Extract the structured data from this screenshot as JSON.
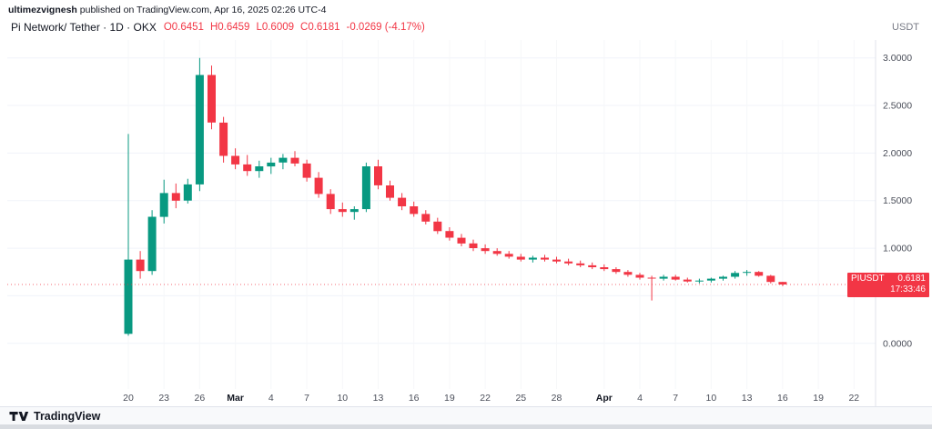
{
  "attribution": {
    "user": "ultimezvignesh",
    "rest": " published on TradingView.com, Apr 16, 2025 02:26 UTC-4"
  },
  "header": {
    "symbol_line": "Pi Network/ Tether · 1D · OKX",
    "ohlc": {
      "open": "O0.6451",
      "high": "H0.6459",
      "low": "L0.6009",
      "close": "C0.6181",
      "change": "-0.0269 (-4.17%)"
    }
  },
  "price_scale": {
    "currency": "USDT",
    "badge": {
      "symbol": "PIUSDT",
      "price": "0.6181",
      "countdown": "17:33:46"
    }
  },
  "footer": {
    "logo_text": "TradingView"
  },
  "colors": {
    "up": "#089981",
    "down": "#f23645",
    "text": "#131722",
    "muted": "#787b86",
    "axis_text": "#4a4e59",
    "grid": "#f0f3fa",
    "grid_v": "#f6f7f9",
    "axis_border": "#e0e3eb",
    "badge_bg": "#f23645"
  },
  "chart_data": {
    "type": "candlestick",
    "title": "Pi Network/ Tether",
    "symbol": "PIUSDT",
    "interval": "1D",
    "exchange": "OKX",
    "last_price": 0.6181,
    "last_ohlc": {
      "open": 0.6451,
      "high": 0.6459,
      "low": 0.6009,
      "close": 0.6181
    },
    "change_abs": -0.0269,
    "change_pct": -4.17,
    "ylim": [
      -0.48,
      3.15
    ],
    "grid_levels": [
      3.0,
      2.5,
      2.0,
      1.5,
      1.0,
      0.5,
      0.0
    ],
    "y_ticks": [
      {
        "label": "3.0000",
        "value": 3.0
      },
      {
        "label": "2.5000",
        "value": 2.5
      },
      {
        "label": "2.0000",
        "value": 2.0
      },
      {
        "label": "1.5000",
        "value": 1.5
      },
      {
        "label": "1.0000",
        "value": 1.0
      },
      {
        "label": "0.0000",
        "value": 0.0
      }
    ],
    "x_labels": [
      {
        "t": "20",
        "i": 0
      },
      {
        "t": "23",
        "i": 3
      },
      {
        "t": "26",
        "i": 6
      },
      {
        "t": "Mar",
        "i": 9,
        "bold": true
      },
      {
        "t": "4",
        "i": 12
      },
      {
        "t": "7",
        "i": 15
      },
      {
        "t": "10",
        "i": 18
      },
      {
        "t": "13",
        "i": 21
      },
      {
        "t": "16",
        "i": 24
      },
      {
        "t": "19",
        "i": 27
      },
      {
        "t": "22",
        "i": 30
      },
      {
        "t": "25",
        "i": 33
      },
      {
        "t": "28",
        "i": 36
      },
      {
        "t": "Apr",
        "i": 40,
        "bold": true
      },
      {
        "t": "4",
        "i": 43
      },
      {
        "t": "7",
        "i": 46
      },
      {
        "t": "10",
        "i": 49
      },
      {
        "t": "13",
        "i": 52
      },
      {
        "t": "16",
        "i": 55
      },
      {
        "t": "19",
        "i": 58
      },
      {
        "t": "22",
        "i": 61
      }
    ],
    "candles": [
      [
        "Feb 20",
        0.1,
        2.2,
        0.08,
        0.88
      ],
      [
        "Feb 21",
        0.88,
        0.97,
        0.68,
        0.76
      ],
      [
        "Feb 22",
        0.76,
        1.4,
        0.72,
        1.33
      ],
      [
        "Feb 23",
        1.33,
        1.72,
        1.26,
        1.58
      ],
      [
        "Feb 24",
        1.58,
        1.68,
        1.42,
        1.5
      ],
      [
        "Feb 25",
        1.5,
        1.73,
        1.47,
        1.67
      ],
      [
        "Feb 26",
        1.67,
        3.0,
        1.6,
        2.82
      ],
      [
        "Feb 27",
        2.82,
        2.92,
        2.25,
        2.32
      ],
      [
        "Feb 28",
        2.32,
        2.38,
        1.9,
        1.97
      ],
      [
        "Mar 1",
        1.97,
        2.05,
        1.83,
        1.88
      ],
      [
        "Mar 2",
        1.88,
        1.98,
        1.76,
        1.81
      ],
      [
        "Mar 3",
        1.81,
        1.92,
        1.74,
        1.86
      ],
      [
        "Mar 4",
        1.86,
        1.95,
        1.78,
        1.9
      ],
      [
        "Mar 5",
        1.9,
        1.99,
        1.83,
        1.95
      ],
      [
        "Mar 6",
        1.95,
        2.02,
        1.86,
        1.89
      ],
      [
        "Mar 7",
        1.89,
        1.93,
        1.7,
        1.74
      ],
      [
        "Mar 8",
        1.74,
        1.8,
        1.53,
        1.57
      ],
      [
        "Mar 9",
        1.57,
        1.62,
        1.36,
        1.41
      ],
      [
        "Mar 10",
        1.41,
        1.48,
        1.33,
        1.38
      ],
      [
        "Mar 11",
        1.38,
        1.44,
        1.3,
        1.41
      ],
      [
        "Mar 12",
        1.41,
        1.9,
        1.38,
        1.86
      ],
      [
        "Mar 13",
        1.86,
        1.93,
        1.62,
        1.66
      ],
      [
        "Mar 14",
        1.66,
        1.71,
        1.5,
        1.53
      ],
      [
        "Mar 15",
        1.53,
        1.58,
        1.4,
        1.44
      ],
      [
        "Mar 16",
        1.44,
        1.49,
        1.33,
        1.36
      ],
      [
        "Mar 17",
        1.36,
        1.4,
        1.25,
        1.28
      ],
      [
        "Mar 18",
        1.28,
        1.32,
        1.15,
        1.18
      ],
      [
        "Mar 19",
        1.18,
        1.22,
        1.08,
        1.11
      ],
      [
        "Mar 20",
        1.11,
        1.15,
        1.02,
        1.05
      ],
      [
        "Mar 21",
        1.05,
        1.09,
        0.97,
        1.0
      ],
      [
        "Mar 22",
        1.0,
        1.04,
        0.94,
        0.97
      ],
      [
        "Mar 23",
        0.97,
        1.0,
        0.92,
        0.94
      ],
      [
        "Mar 24",
        0.94,
        0.97,
        0.89,
        0.91
      ],
      [
        "Mar 25",
        0.91,
        0.94,
        0.86,
        0.88
      ],
      [
        "Mar 26",
        0.88,
        0.92,
        0.85,
        0.9
      ],
      [
        "Mar 27",
        0.9,
        0.93,
        0.86,
        0.88
      ],
      [
        "Mar 28",
        0.88,
        0.91,
        0.84,
        0.86
      ],
      [
        "Mar 29",
        0.86,
        0.89,
        0.82,
        0.84
      ],
      [
        "Mar 30",
        0.84,
        0.87,
        0.8,
        0.82
      ],
      [
        "Mar 31",
        0.82,
        0.85,
        0.78,
        0.8
      ],
      [
        "Apr 1",
        0.8,
        0.83,
        0.76,
        0.78
      ],
      [
        "Apr 2",
        0.78,
        0.8,
        0.73,
        0.75
      ],
      [
        "Apr 3",
        0.75,
        0.77,
        0.7,
        0.72
      ],
      [
        "Apr 4",
        0.72,
        0.74,
        0.67,
        0.69
      ],
      [
        "Apr 5",
        0.69,
        0.71,
        0.45,
        0.68
      ],
      [
        "Apr 6",
        0.68,
        0.72,
        0.66,
        0.7
      ],
      [
        "Apr 7",
        0.7,
        0.72,
        0.66,
        0.67
      ],
      [
        "Apr 8",
        0.67,
        0.69,
        0.64,
        0.65
      ],
      [
        "Apr 9",
        0.65,
        0.68,
        0.63,
        0.66
      ],
      [
        "Apr 10",
        0.66,
        0.69,
        0.64,
        0.68
      ],
      [
        "Apr 11",
        0.68,
        0.71,
        0.66,
        0.7
      ],
      [
        "Apr 12",
        0.7,
        0.76,
        0.68,
        0.74
      ],
      [
        "Apr 13",
        0.74,
        0.77,
        0.71,
        0.75
      ],
      [
        "Apr 14",
        0.75,
        0.76,
        0.7,
        0.71
      ],
      [
        "Apr 15",
        0.71,
        0.72,
        0.63,
        0.6451
      ],
      [
        "Apr 16",
        0.6451,
        0.6459,
        0.6009,
        0.6181
      ]
    ]
  }
}
